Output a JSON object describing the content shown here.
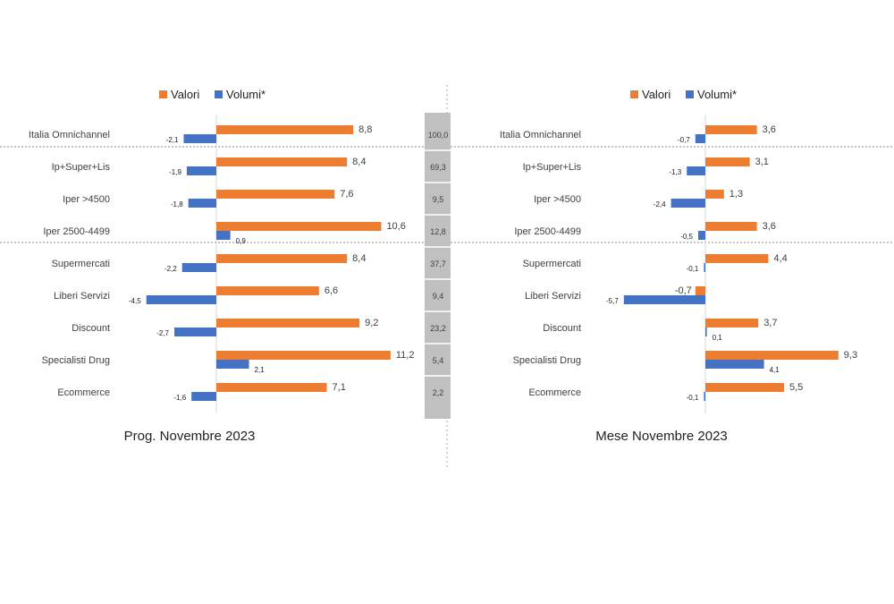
{
  "colors": {
    "valori": "#ED7D31",
    "volumi": "#4472C4",
    "share_box": "#C0C0C0",
    "text": "#404040"
  },
  "legend": {
    "valori": "Valori",
    "volumi": "Volumi*"
  },
  "categories": [
    "Italia Omnichannel",
    "Ip+Super+Lis",
    "Iper >4500",
    "Iper 2500-4499",
    "Supermercati",
    "Liberi Servizi",
    "Discount",
    "Specialisti Drug",
    "Ecommerce"
  ],
  "shares": [
    "100,0",
    "69,3",
    "9,5",
    "12,8",
    "37,7",
    "9,4",
    "23,2",
    "5,4",
    "2,2"
  ],
  "chart_data": [
    {
      "type": "bar",
      "orientation": "horizontal",
      "title": "Prog. Novembre 2023",
      "categories": [
        "Italia Omnichannel",
        "Ip+Super+Lis",
        "Iper >4500",
        "Iper 2500-4499",
        "Supermercati",
        "Liberi Servizi",
        "Discount",
        "Specialisti Drug",
        "Ecommerce"
      ],
      "series": [
        {
          "name": "Valori",
          "values": [
            8.8,
            8.4,
            7.6,
            10.6,
            8.4,
            6.6,
            9.2,
            11.2,
            7.1
          ],
          "labels": [
            "8,8",
            "8,4",
            "7,6",
            "10,6",
            "8,4",
            "6,6",
            "9,2",
            "11,2",
            "7,1"
          ]
        },
        {
          "name": "Volumi*",
          "values": [
            -2.1,
            -1.9,
            -1.8,
            0.9,
            -2.2,
            -4.5,
            -2.7,
            2.1,
            -1.6
          ],
          "labels": [
            "-2,1",
            "-1,9",
            "-1,8",
            "0,9",
            "-2,2",
            "-4,5",
            "-2,7",
            "2,1",
            "-1,6"
          ]
        }
      ],
      "legend": "top"
    },
    {
      "type": "bar",
      "orientation": "horizontal",
      "title": "Mese Novembre 2023",
      "categories": [
        "Italia Omnichannel",
        "Ip+Super+Lis",
        "Iper >4500",
        "Iper 2500-4499",
        "Supermercati",
        "Liberi Servizi",
        "Discount",
        "Specialisti Drug",
        "Ecommerce"
      ],
      "series": [
        {
          "name": "Valori",
          "values": [
            3.6,
            3.1,
            1.3,
            3.6,
            4.4,
            -0.7,
            3.7,
            9.3,
            5.5
          ],
          "labels": [
            "3,6",
            "3,1",
            "1,3",
            "3,6",
            "4,4",
            "-0,7",
            "3,7",
            "9,3",
            "5,5"
          ]
        },
        {
          "name": "Volumi*",
          "values": [
            -0.7,
            -1.3,
            -2.4,
            -0.5,
            -0.1,
            -5.7,
            0.1,
            4.1,
            -0.1
          ],
          "labels": [
            "-0,7",
            "-1,3",
            "-2,4",
            "-0,5",
            "-0,1",
            "-5,7",
            "0,1",
            "4,1",
            "-0,1"
          ]
        }
      ],
      "legend": "top"
    }
  ]
}
